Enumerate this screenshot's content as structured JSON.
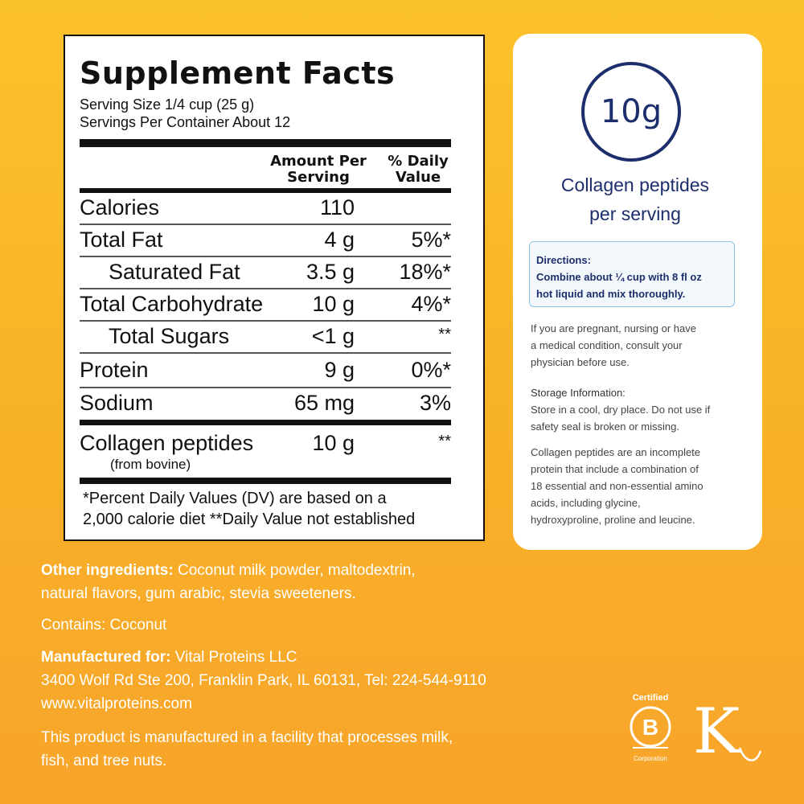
{
  "facts": {
    "title": "Supplement Facts",
    "serving_size": "Serving Size 1/4 cup (25 g)",
    "servings_per_container": "Servings Per Container About 12",
    "col_amount_line1": "Amount Per",
    "col_amount_line2": "Serving",
    "col_dv_line1": "% Daily",
    "col_dv_line2": "Value",
    "rows": [
      {
        "label": "Calories",
        "amount": "110",
        "dv": ""
      },
      {
        "label": "Total Fat",
        "amount": "4 g",
        "dv": "5%*"
      },
      {
        "label": "Saturated Fat",
        "amount": "3.5 g",
        "dv": "18%*"
      },
      {
        "label": "Total Carbohydrate",
        "amount": "10 g",
        "dv": "4%*"
      },
      {
        "label": "Total Sugars",
        "amount": "<1 g",
        "dv": "**"
      },
      {
        "label": "Protein",
        "amount": "9 g",
        "dv": "0%*"
      },
      {
        "label": "Sodium",
        "amount": "65 mg",
        "dv": "3%"
      },
      {
        "label": "Collagen peptides",
        "amount": "10 g",
        "dv": "**"
      }
    ],
    "collagen_source": "(from bovine)",
    "footnote_line1": "*Percent Daily Values (DV) are based on a",
    "footnote_line2": "2,000 calorie diet **Daily Value not established"
  },
  "card": {
    "badge": "10g",
    "caption_line1": "Collagen peptides",
    "caption_line2": "per serving",
    "directions_head": "Directions:",
    "directions_line1": "Combine about ¼ cup with 8 fl oz",
    "directions_line2": "hot liquid and mix thoroughly.",
    "warning_line1": "If you are pregnant, nursing or have",
    "warning_line2": "a medical condition, consult your",
    "warning_line3": "physician before use.",
    "storage_head": "Storage Information:",
    "storage_line1": "Store in a cool, dry place. Do not use if",
    "storage_line2": "safety seal is broken or missing.",
    "info_line1": "Collagen peptides are an incomplete",
    "info_line2": "protein that include a combination of",
    "info_line3": "18 essential and non-essential amino",
    "info_line4": "acids, including glycine,",
    "info_line5": "hydroxyproline, proline and leucine."
  },
  "bottom": {
    "other_ingredients_label": "Other ingredients:",
    "other_ingredients_line1": " Coconut milk powder, maltodextrin,",
    "other_ingredients_line2": "natural flavors, gum arabic, stevia sweeteners.",
    "contains": "Contains: Coconut",
    "manufactured_label": "Manufactured for:",
    "manufactured_name": " Vital Proteins LLC",
    "address": "3400 Wolf Rd Ste 200, Franklin Park, IL 60131, Tel: 224-544-9110",
    "website": "www.vitalproteins.com",
    "allergen_line1": "This product is manufactured in a facility that processes milk,",
    "allergen_line2": "fish, and tree nuts."
  },
  "logos": {
    "bcorp_certified": "Certified",
    "bcorp_corporation": "Corporation",
    "bcorp_letter": "B",
    "kosher_letter": "K"
  },
  "colors": {
    "background": "#fcc22b",
    "navy": "#1c2e6b",
    "directions_border": "#8fc1e3"
  }
}
